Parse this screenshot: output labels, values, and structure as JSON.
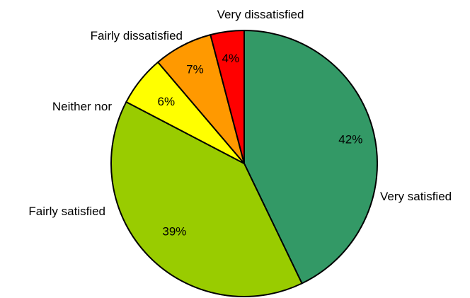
{
  "chart_data": {
    "type": "pie",
    "title": "",
    "start_angle_deg": 0,
    "direction": "clockwise",
    "slices": [
      {
        "label": "Very satisfied",
        "value": 42,
        "value_label": "42%",
        "color": "#339966"
      },
      {
        "label": "Fairly satisfied",
        "value": 39,
        "value_label": "39%",
        "color": "#99cc00"
      },
      {
        "label": "Neither nor",
        "value": 6,
        "value_label": "6%",
        "color": "#ffff00"
      },
      {
        "label": "Fairly dissatisfied",
        "value": 7,
        "value_label": "7%",
        "color": "#ff9900"
      },
      {
        "label": "Very dissatisfied",
        "value": 4,
        "value_label": "4%",
        "color": "#ff0000"
      }
    ],
    "outline_color": "#000000"
  }
}
